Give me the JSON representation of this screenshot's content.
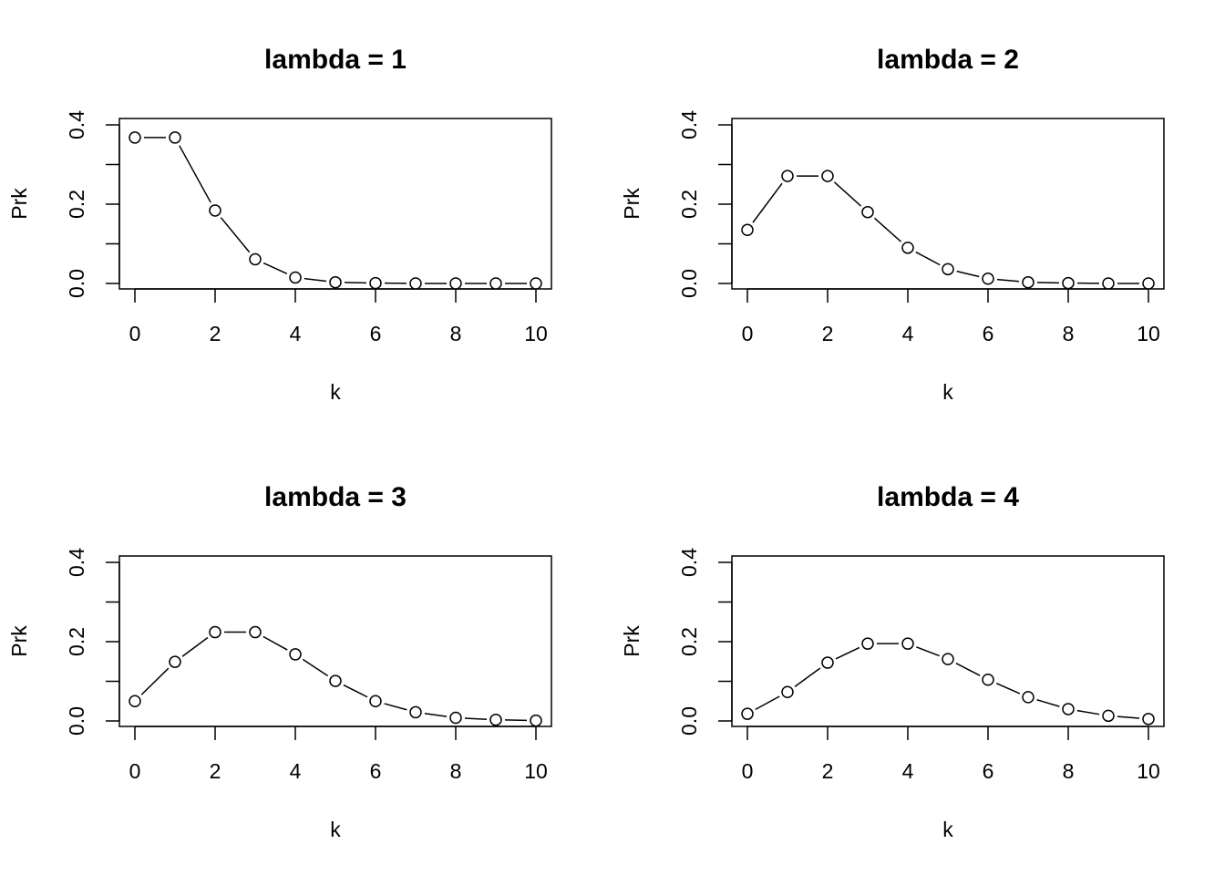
{
  "chart_data": [
    {
      "type": "line",
      "title": "lambda = 1",
      "xlabel": "k",
      "ylabel": "Prk",
      "xlim": [
        0,
        10
      ],
      "ylim": [
        0,
        0.4
      ],
      "x_ticks": [
        "0",
        "2",
        "4",
        "6",
        "8",
        "10"
      ],
      "y_ticks": [
        "0.0",
        "0.2",
        "0.4"
      ],
      "grid": false,
      "marker": "open-circle",
      "line_style": "solid, broken around points",
      "x": [
        0,
        1,
        2,
        3,
        4,
        5,
        6,
        7,
        8,
        9,
        10
      ],
      "y": [
        0.368,
        0.368,
        0.184,
        0.061,
        0.015,
        0.003,
        0.001,
        0.0,
        0.0,
        0.0,
        0.0
      ]
    },
    {
      "type": "line",
      "title": "lambda = 2",
      "xlabel": "k",
      "ylabel": "Prk",
      "xlim": [
        0,
        10
      ],
      "ylim": [
        0,
        0.4
      ],
      "x_ticks": [
        "0",
        "2",
        "4",
        "6",
        "8",
        "10"
      ],
      "y_ticks": [
        "0.0",
        "0.2",
        "0.4"
      ],
      "grid": false,
      "marker": "open-circle",
      "line_style": "solid, broken around points",
      "x": [
        0,
        1,
        2,
        3,
        4,
        5,
        6,
        7,
        8,
        9,
        10
      ],
      "y": [
        0.135,
        0.271,
        0.271,
        0.18,
        0.09,
        0.036,
        0.012,
        0.003,
        0.001,
        0.0,
        0.0
      ]
    },
    {
      "type": "line",
      "title": "lambda = 3",
      "xlabel": "k",
      "ylabel": "Prk",
      "xlim": [
        0,
        10
      ],
      "ylim": [
        0,
        0.4
      ],
      "x_ticks": [
        "0",
        "2",
        "4",
        "6",
        "8",
        "10"
      ],
      "y_ticks": [
        "0.0",
        "0.2",
        "0.4"
      ],
      "grid": false,
      "marker": "open-circle",
      "line_style": "solid, broken around points",
      "x": [
        0,
        1,
        2,
        3,
        4,
        5,
        6,
        7,
        8,
        9,
        10
      ],
      "y": [
        0.05,
        0.149,
        0.224,
        0.224,
        0.168,
        0.101,
        0.05,
        0.022,
        0.008,
        0.003,
        0.001
      ]
    },
    {
      "type": "line",
      "title": "lambda = 4",
      "xlabel": "k",
      "ylabel": "Prk",
      "xlim": [
        0,
        10
      ],
      "ylim": [
        0,
        0.4
      ],
      "x_ticks": [
        "0",
        "2",
        "4",
        "6",
        "8",
        "10"
      ],
      "y_ticks": [
        "0.0",
        "0.2",
        "0.4"
      ],
      "grid": false,
      "marker": "open-circle",
      "line_style": "solid, broken around points",
      "x": [
        0,
        1,
        2,
        3,
        4,
        5,
        6,
        7,
        8,
        9,
        10
      ],
      "y": [
        0.018,
        0.073,
        0.147,
        0.195,
        0.195,
        0.156,
        0.104,
        0.06,
        0.03,
        0.013,
        0.005
      ]
    }
  ]
}
